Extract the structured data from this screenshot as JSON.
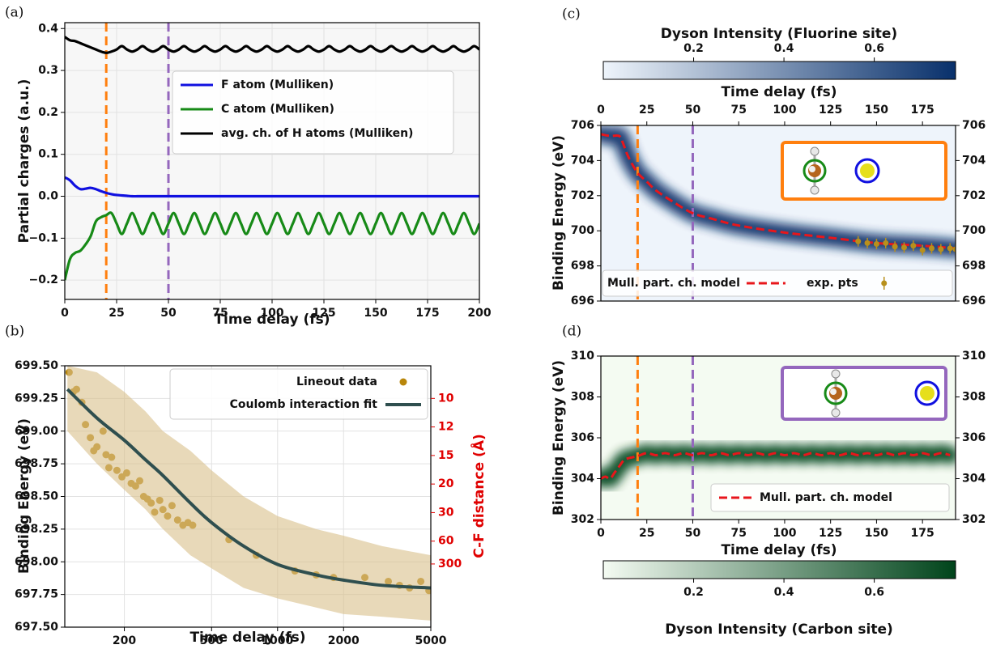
{
  "chart_data": [
    {
      "type": "line",
      "panel_label": "(a)",
      "xlabel": "Time delay (fs)",
      "ylabel": "Partial charges (a.u.)",
      "x": [
        0,
        2.5,
        5,
        7.5,
        10,
        12.5,
        15,
        17.5,
        20,
        22.5,
        25,
        27.5,
        30,
        32.5,
        35,
        37.5,
        40,
        42.5,
        45,
        47.5,
        50,
        52.5,
        55,
        57.5,
        60,
        62.5,
        65,
        67.5,
        70,
        72.5,
        75,
        77.5,
        80,
        82.5,
        85,
        87.5,
        90,
        92.5,
        95,
        97.5,
        100,
        102.5,
        105,
        107.5,
        110,
        112.5,
        115,
        117.5,
        120,
        122.5,
        125,
        127.5,
        130,
        132.5,
        135,
        137.5,
        140,
        142.5,
        145,
        147.5,
        150,
        152.5,
        155,
        157.5,
        160,
        162.5,
        165,
        167.5,
        170,
        172.5,
        175,
        177.5,
        180,
        182.5,
        185,
        187.5,
        190,
        192.5,
        195,
        197.5,
        200
      ],
      "xlim": [
        0,
        200
      ],
      "xticks": [
        0,
        25,
        50,
        75,
        100,
        125,
        150,
        175,
        200
      ],
      "ylim": [
        -0.246,
        0.414
      ],
      "yticks": [
        {
          "value": -0.2,
          "label": "−0.2"
        },
        {
          "value": -0.1,
          "label": "−0.1"
        },
        {
          "value": 0,
          "label": "0.0"
        },
        0.1,
        0.2,
        0.3,
        0.4
      ],
      "grid": true,
      "background": "#f7f7f7",
      "legend": "upper right",
      "vlines": [
        {
          "x": 20,
          "color": "#ff7f0e"
        },
        {
          "x": 50,
          "color": "#9467bd"
        }
      ],
      "series": [
        {
          "name": "F atom (Mulliken)",
          "color": "#1010e0",
          "values": [
            0.045,
            0.038,
            0.025,
            0.017,
            0.018,
            0.02,
            0.017,
            0.012,
            0.008,
            0.005,
            0.003,
            0.002,
            0.001,
            0,
            0,
            0,
            0,
            0,
            0,
            0,
            0,
            0,
            0,
            0,
            0,
            0,
            0,
            0,
            0,
            0,
            0,
            0,
            0,
            0,
            0,
            0,
            0,
            0,
            0,
            0,
            0,
            0,
            0,
            0,
            0,
            0,
            0,
            0,
            0,
            0,
            0,
            0,
            0,
            0,
            0,
            0,
            0,
            0,
            0,
            0,
            0,
            0,
            0,
            0,
            0,
            0,
            0,
            0,
            0,
            0,
            0,
            0,
            0,
            0,
            0,
            0,
            0,
            0,
            0,
            0,
            0
          ]
        },
        {
          "name": "C atom (Mulliken)",
          "color": "#178a17",
          "values": [
            -0.2,
            -0.15,
            -0.135,
            -0.13,
            -0.115,
            -0.095,
            -0.06,
            -0.05,
            -0.045,
            -0.04,
            -0.065,
            -0.09,
            -0.065,
            -0.04,
            -0.065,
            -0.09,
            -0.065,
            -0.04,
            -0.065,
            -0.09,
            -0.065,
            -0.04,
            -0.065,
            -0.09,
            -0.065,
            -0.04,
            -0.065,
            -0.09,
            -0.065,
            -0.04,
            -0.065,
            -0.09,
            -0.065,
            -0.04,
            -0.065,
            -0.09,
            -0.065,
            -0.04,
            -0.065,
            -0.09,
            -0.065,
            -0.04,
            -0.065,
            -0.09,
            -0.065,
            -0.04,
            -0.065,
            -0.09,
            -0.065,
            -0.04,
            -0.065,
            -0.09,
            -0.065,
            -0.04,
            -0.065,
            -0.09,
            -0.065,
            -0.04,
            -0.065,
            -0.09,
            -0.065,
            -0.04,
            -0.065,
            -0.09,
            -0.065,
            -0.04,
            -0.065,
            -0.09,
            -0.065,
            -0.04,
            -0.065,
            -0.09,
            -0.065,
            -0.04,
            -0.065,
            -0.09,
            -0.065,
            -0.04,
            -0.065,
            -0.09,
            -0.065
          ]
        },
        {
          "name": "avg. ch. of H atoms (Mulliken)",
          "color": "#000000",
          "values": [
            0.38,
            0.372,
            0.37,
            0.365,
            0.36,
            0.355,
            0.35,
            0.345,
            0.342,
            0.345,
            0.35,
            0.358,
            0.35,
            0.345,
            0.35,
            0.358,
            0.35,
            0.345,
            0.35,
            0.358,
            0.35,
            0.345,
            0.35,
            0.358,
            0.35,
            0.345,
            0.35,
            0.358,
            0.35,
            0.345,
            0.35,
            0.358,
            0.35,
            0.345,
            0.35,
            0.358,
            0.35,
            0.345,
            0.35,
            0.358,
            0.35,
            0.345,
            0.35,
            0.358,
            0.35,
            0.345,
            0.35,
            0.358,
            0.35,
            0.345,
            0.35,
            0.358,
            0.35,
            0.345,
            0.35,
            0.358,
            0.35,
            0.345,
            0.35,
            0.358,
            0.35,
            0.345,
            0.35,
            0.358,
            0.35,
            0.345,
            0.35,
            0.358,
            0.35,
            0.345,
            0.35,
            0.358,
            0.35,
            0.345,
            0.35,
            0.358,
            0.35,
            0.345,
            0.35,
            0.358,
            0.35
          ]
        }
      ]
    },
    {
      "type": "scatter",
      "panel_label": "(b)",
      "xlabel": "Time delay (fs)",
      "ylabel": "Binding Energy (eV)",
      "xscale": "log",
      "xlim": [
        107,
        5000
      ],
      "xticks": [
        200,
        500,
        1000,
        2000,
        5000
      ],
      "ylim": [
        697.5,
        699.5
      ],
      "yticks": [
        {
          "value": 697.5,
          "label": "697.50"
        },
        {
          "value": 697.75,
          "label": "697.75"
        },
        {
          "value": 698,
          "label": "698.00"
        },
        {
          "value": 698.25,
          "label": "698.25"
        },
        {
          "value": 698.5,
          "label": "698.50"
        },
        {
          "value": 698.75,
          "label": "698.75"
        },
        {
          "value": 699,
          "label": "699.00"
        },
        {
          "value": 699.25,
          "label": "699.25"
        },
        {
          "value": 699.5,
          "label": "699.50"
        }
      ],
      "y2label": "C-F distance (Å)",
      "y2color": "#e00000",
      "y2scale": "reciprocal",
      "y2lim": [
        -29.8,
        8.4
      ],
      "y2ticks": [
        10,
        12,
        15,
        20,
        30,
        60,
        300
      ],
      "grid": true,
      "background": "#ffffff",
      "legend": "upper right",
      "band_color": "#d9c08a",
      "series": [
        {
          "name": "Lineout data",
          "color": "#b8860b",
          "x": [
            112,
            117,
            121,
            128,
            133,
            140,
            145,
            150,
            160,
            165,
            170,
            175,
            185,
            195,
            205,
            215,
            225,
            235,
            245,
            255,
            265,
            275,
            290,
            300,
            315,
            330,
            350,
            370,
            390,
            410,
            600,
            800,
            1200,
            1500,
            1800,
            2500,
            3200,
            3600,
            4000,
            4500,
            4900
          ],
          "values": [
            699.45,
            699.3,
            699.32,
            699.22,
            699.05,
            698.95,
            698.85,
            698.88,
            699.0,
            698.82,
            698.72,
            698.8,
            698.7,
            698.65,
            698.68,
            698.6,
            698.58,
            698.62,
            698.5,
            698.48,
            698.45,
            698.38,
            698.47,
            698.4,
            698.35,
            698.43,
            698.32,
            698.28,
            698.3,
            698.28,
            698.17,
            698.05,
            697.93,
            697.9,
            697.88,
            697.88,
            697.85,
            697.82,
            697.8,
            697.85,
            697.78
          ]
        },
        {
          "name": "Coulomb interaction fit",
          "color": "#2f4f4f",
          "x": [
            110,
            150,
            200,
            250,
            300,
            400,
            500,
            700,
            1000,
            1500,
            2000,
            3000,
            5000
          ],
          "values": [
            699.32,
            699.1,
            698.93,
            698.78,
            698.66,
            698.45,
            698.3,
            698.12,
            697.98,
            697.9,
            697.86,
            697.82,
            697.8
          ],
          "lower": [
            699.0,
            698.75,
            698.55,
            698.4,
            698.25,
            698.05,
            697.95,
            697.8,
            697.72,
            697.65,
            697.6,
            697.58,
            697.55
          ],
          "upper": [
            699.5,
            699.45,
            699.3,
            699.15,
            699.0,
            698.85,
            698.7,
            698.5,
            698.35,
            698.25,
            698.2,
            698.12,
            698.05
          ]
        }
      ]
    },
    {
      "type": "heatmap",
      "panel_label": "(c)",
      "colorbar_label": "Dyson Intensity (Fluorine site)",
      "colorbar": "top",
      "clim": [
        0,
        0.78
      ],
      "cticks": [
        0.2,
        0.4,
        0.6
      ],
      "cmap": [
        "#eef4fb",
        "#08306b"
      ],
      "xlabel": "Time delay (fs)",
      "xaxis": "top",
      "xlim": [
        0,
        193
      ],
      "xticks": [
        0,
        25,
        50,
        75,
        100,
        125,
        150,
        175
      ],
      "ylabel": "Binding Energy (eV)",
      "ylim": [
        696,
        706
      ],
      "yticks": [
        696,
        698,
        700,
        702,
        704,
        706
      ],
      "yright": true,
      "legend": "lower left",
      "vlines": [
        {
          "x": 20,
          "color": "#ff7f0e"
        },
        {
          "x": 50,
          "color": "#9467bd"
        }
      ],
      "series": [
        {
          "name": "Mull. part. ch. model",
          "color": "#e8161b",
          "x": [
            0,
            5,
            10,
            12,
            15,
            20,
            25,
            30,
            40,
            50,
            60,
            75,
            100,
            125,
            150,
            175,
            193
          ],
          "values": [
            705.5,
            705.4,
            705.4,
            705.0,
            704.2,
            703.3,
            702.8,
            702.3,
            701.6,
            701.0,
            700.7,
            700.3,
            699.9,
            699.6,
            699.3,
            699.15,
            699.0
          ]
        },
        {
          "name": "exp. pts",
          "color": "#b8901c",
          "x": [
            140,
            145,
            150,
            155,
            160,
            165,
            170,
            175,
            180,
            185,
            190,
            193
          ],
          "values": [
            699.4,
            699.3,
            699.25,
            699.3,
            699.1,
            699.05,
            699.15,
            698.9,
            699.0,
            698.95,
            699.0,
            698.95
          ],
          "errors": [
            0.3,
            0.3,
            0.3,
            0.3,
            0.3,
            0.3,
            0.3,
            0.3,
            0.3,
            0.3,
            0.3,
            0.3
          ]
        }
      ]
    },
    {
      "type": "heatmap",
      "panel_label": "(d)",
      "colorbar_label": "Dyson Intensity (Carbon site)",
      "colorbar": "bottom",
      "clim": [
        0,
        0.78
      ],
      "cticks": [
        0.2,
        0.4,
        0.6
      ],
      "cmap": [
        "#f4fbf2",
        "#00441b"
      ],
      "xlabel": "Time delay (fs)",
      "xaxis": "bottom",
      "xlim": [
        0,
        193
      ],
      "xticks": [
        0,
        25,
        50,
        75,
        100,
        125,
        150,
        175
      ],
      "ylabel": "Binding Energy (eV)",
      "ylim": [
        302,
        310
      ],
      "yticks": [
        302,
        304,
        306,
        308,
        310
      ],
      "yright": true,
      "legend": "lower right",
      "vlines": [
        {
          "x": 20,
          "color": "#ff7f0e"
        },
        {
          "x": 50,
          "color": "#9467bd"
        }
      ],
      "series": [
        {
          "name": "Mull. part. ch. model",
          "color": "#e8161b",
          "x": [
            0,
            2.5,
            5,
            7.5,
            10,
            12.5,
            15,
            17.5,
            20,
            25,
            30,
            35,
            40,
            45,
            50,
            55,
            60,
            65,
            70,
            75,
            80,
            85,
            90,
            95,
            100,
            105,
            110,
            115,
            120,
            125,
            130,
            135,
            140,
            145,
            150,
            155,
            160,
            165,
            170,
            175,
            180,
            185,
            190
          ],
          "values": [
            304.0,
            304.1,
            304.0,
            304.3,
            304.6,
            304.9,
            305.0,
            305.05,
            305.1,
            305.25,
            305.15,
            305.25,
            305.15,
            305.25,
            305.15,
            305.25,
            305.15,
            305.25,
            305.15,
            305.25,
            305.15,
            305.25,
            305.15,
            305.25,
            305.15,
            305.25,
            305.15,
            305.25,
            305.15,
            305.25,
            305.15,
            305.25,
            305.15,
            305.25,
            305.15,
            305.25,
            305.15,
            305.25,
            305.15,
            305.25,
            305.15,
            305.25,
            305.15
          ]
        }
      ]
    }
  ]
}
